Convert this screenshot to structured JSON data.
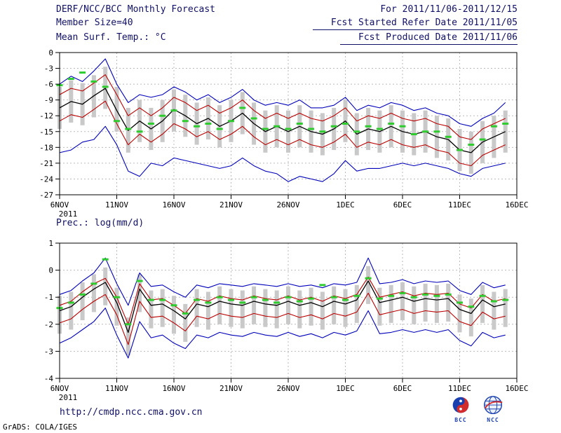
{
  "header": {
    "title": "DERF/NCC/BCC Monthly Forecast",
    "member_size": "Member Size=40",
    "temp_label": "Mean Surf. Temp.: °C",
    "for_range": "For 2011/11/06-2011/12/15",
    "fcst_started": "Fcst Started Refer Date 2011/11/05",
    "fcst_produced": "Fcst Produced Date 2011/11/06"
  },
  "footer": {
    "url": "http://cmdp.ncc.cma.gov.cn",
    "credit": "GrADS: COLA/IGES",
    "logos": [
      {
        "label": "BCC"
      },
      {
        "label": "NCC"
      }
    ]
  },
  "colors": {
    "text": "#101066",
    "axis": "#000000",
    "blue": "#0000bb",
    "red": "#bb0000",
    "black": "#000000",
    "green": "#2ecc2e",
    "bar": "#c9c9c9",
    "grid": "#bbbbbb"
  },
  "chart_data": [
    {
      "id": "temperature",
      "type": "line",
      "title": "Mean Surf. Temp.: °C",
      "ylim": [
        -27,
        0
      ],
      "yticks": [
        0,
        -3,
        -6,
        -9,
        -12,
        -15,
        -18,
        -21,
        -24,
        -27
      ],
      "x_range": [
        0,
        40
      ],
      "xtick_positions": [
        0,
        5,
        10,
        15,
        20,
        25,
        30,
        35,
        40
      ],
      "xtick_labels": [
        "6NOV",
        "11NOV",
        "16NOV",
        "21NOV",
        "26NOV",
        "1DEC",
        "6DEC",
        "11DEC",
        "16DEC"
      ],
      "x_sub_label": "2011",
      "grid": "dotted",
      "series": [
        {
          "name": "ensemble-max",
          "color": "#0000bb",
          "values": [
            -6.0,
            -4.5,
            -5.5,
            -3.5,
            -1.2,
            -6.0,
            -9.5,
            -8.0,
            -8.5,
            -8.0,
            -6.5,
            -7.5,
            -9.0,
            -8.0,
            -9.5,
            -8.5,
            -7.0,
            -9.0,
            -10.0,
            -9.5,
            -10.0,
            -9.0,
            -10.5,
            -10.5,
            -10.0,
            -8.5,
            -11.0,
            -10.0,
            -10.5,
            -9.5,
            -10.0,
            -11.0,
            -10.5,
            -11.5,
            -12.0,
            -13.5,
            -14.0,
            -12.5,
            -11.5,
            -9.5
          ]
        },
        {
          "name": "upper-spread",
          "color": "#bb0000",
          "values": [
            -8.0,
            -6.8,
            -7.3,
            -5.8,
            -4.2,
            -8.0,
            -12.0,
            -10.5,
            -12.0,
            -10.5,
            -8.5,
            -9.5,
            -11.0,
            -10.0,
            -11.5,
            -10.5,
            -9.0,
            -11.0,
            -12.5,
            -11.5,
            -12.5,
            -11.5,
            -12.5,
            -13.0,
            -12.0,
            -10.5,
            -13.0,
            -12.0,
            -12.5,
            -11.5,
            -12.5,
            -13.0,
            -12.5,
            -13.5,
            -14.0,
            -16.0,
            -16.5,
            -14.5,
            -13.5,
            -12.5
          ]
        },
        {
          "name": "ensemble-mean",
          "color": "#000000",
          "values": [
            -10.5,
            -9.3,
            -9.8,
            -8.2,
            -6.8,
            -11.0,
            -14.8,
            -13.0,
            -14.5,
            -13.0,
            -10.8,
            -12.0,
            -13.5,
            -12.5,
            -14.0,
            -13.0,
            -11.5,
            -13.5,
            -15.0,
            -14.0,
            -15.0,
            -14.0,
            -15.0,
            -15.5,
            -14.5,
            -13.0,
            -15.5,
            -14.5,
            -15.0,
            -14.0,
            -15.0,
            -15.5,
            -15.0,
            -16.0,
            -16.5,
            -18.5,
            -19.0,
            -17.0,
            -16.0,
            -15.0
          ]
        },
        {
          "name": "lower-spread",
          "color": "#bb0000",
          "values": [
            -13.0,
            -11.8,
            -12.3,
            -10.8,
            -9.2,
            -13.5,
            -17.5,
            -15.5,
            -17.0,
            -15.5,
            -13.5,
            -14.5,
            -16.0,
            -15.0,
            -16.5,
            -15.5,
            -14.0,
            -16.0,
            -17.5,
            -16.5,
            -17.5,
            -16.5,
            -17.5,
            -18.0,
            -17.0,
            -15.5,
            -18.0,
            -17.0,
            -17.5,
            -16.5,
            -17.5,
            -18.0,
            -17.5,
            -18.5,
            -19.0,
            -21.0,
            -21.5,
            -19.5,
            -18.5,
            -17.5
          ]
        },
        {
          "name": "ensemble-min",
          "color": "#0000bb",
          "values": [
            -19.0,
            -18.5,
            -17.0,
            -16.5,
            -14.0,
            -17.5,
            -22.5,
            -23.5,
            -21.0,
            -21.5,
            -20.0,
            -20.5,
            -21.0,
            -21.5,
            -22.0,
            -21.5,
            -20.0,
            -21.5,
            -22.5,
            -23.0,
            -24.5,
            -23.5,
            -24.0,
            -24.5,
            -23.0,
            -20.5,
            -22.5,
            -22.0,
            -22.0,
            -21.5,
            -21.0,
            -21.5,
            -21.0,
            -21.5,
            -22.0,
            -23.0,
            -23.5,
            -22.0,
            -21.5,
            -21.0
          ]
        }
      ],
      "bars": {
        "name": "member-spread",
        "color": "#c9c9c9",
        "hi": [
          -6.5,
          -5.3,
          -5.8,
          -4.3,
          -2.7,
          -6.5,
          -10.5,
          -9.0,
          -10.5,
          -9.0,
          -7.0,
          -8.0,
          -9.5,
          -8.5,
          -10.0,
          -9.0,
          -7.5,
          -9.5,
          -11.0,
          -10.0,
          -11.0,
          -10.0,
          -11.0,
          -11.5,
          -10.5,
          -9.0,
          -11.5,
          -10.5,
          -11.0,
          -10.0,
          -11.0,
          -11.5,
          -11.0,
          -12.0,
          -12.5,
          -14.5,
          -15.0,
          -13.0,
          -12.0,
          -11.0
        ],
        "lo": [
          -14.5,
          -13.3,
          -13.8,
          -12.3,
          -10.7,
          -15.0,
          -19.0,
          -17.0,
          -18.5,
          -17.0,
          -15.0,
          -16.0,
          -17.5,
          -16.5,
          -18.0,
          -17.0,
          -15.5,
          -17.5,
          -19.0,
          -18.0,
          -19.0,
          -18.0,
          -19.0,
          -19.5,
          -18.5,
          -17.0,
          -19.5,
          -18.5,
          -19.0,
          -18.0,
          -19.0,
          -19.5,
          -19.0,
          -20.0,
          -20.5,
          -22.5,
          -23.0,
          -21.0,
          -20.0,
          -19.0
        ]
      },
      "markers": {
        "name": "ensemble-median",
        "color": "#2ecc2e",
        "values": [
          -6.2,
          -5.0,
          -3.8,
          -5.5,
          -6.5,
          -13.0,
          -14.5,
          -15.0,
          -13.5,
          -12.0,
          -11.0,
          -13.0,
          -14.0,
          -13.5,
          -14.5,
          -13.0,
          -10.5,
          -12.5,
          -14.5,
          -14.0,
          -14.5,
          -13.5,
          -14.5,
          -15.0,
          -14.0,
          -13.5,
          -15.0,
          -14.0,
          -14.5,
          -13.5,
          -14.0,
          -15.5,
          -15.0,
          -15.0,
          -16.0,
          -18.5,
          -17.5,
          -16.5,
          -14.0,
          -13.5
        ]
      }
    },
    {
      "id": "precipitation",
      "type": "line",
      "title": "Prec.: log(mm/d)",
      "ylim": [
        -4,
        1
      ],
      "yticks": [
        1,
        0,
        -1,
        -2,
        -3,
        -4
      ],
      "x_range": [
        0,
        40
      ],
      "xtick_positions": [
        0,
        5,
        10,
        15,
        20,
        25,
        30,
        35,
        40
      ],
      "xtick_labels": [
        "6NOV",
        "11NOV",
        "16NOV",
        "21NOV",
        "26NOV",
        "1DEC",
        "6DEC",
        "11DEC",
        "16DEC"
      ],
      "x_sub_label": "2011",
      "grid": "dotted",
      "series": [
        {
          "name": "ensemble-max",
          "color": "#0000bb",
          "values": [
            -0.9,
            -0.75,
            -0.4,
            -0.1,
            0.45,
            -0.5,
            -1.3,
            -0.1,
            -0.6,
            -0.55,
            -0.8,
            -1.0,
            -0.55,
            -0.65,
            -0.5,
            -0.55,
            -0.6,
            -0.5,
            -0.55,
            -0.6,
            -0.5,
            -0.6,
            -0.55,
            -0.65,
            -0.5,
            -0.55,
            -0.45,
            0.45,
            -0.5,
            -0.45,
            -0.35,
            -0.5,
            -0.4,
            -0.45,
            -0.4,
            -0.75,
            -0.9,
            -0.45,
            -0.65,
            -0.55
          ]
        },
        {
          "name": "upper-spread",
          "color": "#bb0000",
          "values": [
            -1.3,
            -1.15,
            -0.8,
            -0.5,
            -0.3,
            -1.0,
            -2.0,
            -0.5,
            -1.1,
            -1.05,
            -1.3,
            -1.6,
            -1.05,
            -1.15,
            -0.95,
            -1.05,
            -1.1,
            -0.95,
            -1.05,
            -1.1,
            -0.95,
            -1.1,
            -1.0,
            -1.15,
            -0.95,
            -1.05,
            -0.9,
            -0.25,
            -1.0,
            -0.9,
            -0.8,
            -0.95,
            -0.85,
            -0.9,
            -0.85,
            -1.25,
            -1.4,
            -0.9,
            -1.15,
            -1.05
          ]
        },
        {
          "name": "ensemble-mean",
          "color": "#000000",
          "values": [
            -1.5,
            -1.35,
            -1.0,
            -0.7,
            -0.45,
            -1.2,
            -2.3,
            -0.7,
            -1.3,
            -1.25,
            -1.5,
            -1.8,
            -1.25,
            -1.35,
            -1.15,
            -1.25,
            -1.3,
            -1.15,
            -1.25,
            -1.3,
            -1.15,
            -1.3,
            -1.2,
            -1.35,
            -1.15,
            -1.25,
            -1.1,
            -0.4,
            -1.2,
            -1.1,
            -1.0,
            -1.15,
            -1.05,
            -1.1,
            -1.05,
            -1.45,
            -1.6,
            -1.1,
            -1.35,
            -1.25
          ]
        },
        {
          "name": "lower-spread",
          "color": "#bb0000",
          "values": [
            -1.95,
            -1.8,
            -1.45,
            -1.15,
            -0.9,
            -1.65,
            -2.75,
            -1.15,
            -1.75,
            -1.7,
            -1.95,
            -2.25,
            -1.7,
            -1.8,
            -1.6,
            -1.7,
            -1.75,
            -1.6,
            -1.7,
            -1.75,
            -1.6,
            -1.75,
            -1.65,
            -1.8,
            -1.6,
            -1.7,
            -1.55,
            -0.85,
            -1.65,
            -1.55,
            -1.45,
            -1.6,
            -1.5,
            -1.55,
            -1.5,
            -1.9,
            -2.05,
            -1.55,
            -1.8,
            -1.7
          ]
        },
        {
          "name": "ensemble-min",
          "color": "#0000bb",
          "values": [
            -2.7,
            -2.5,
            -2.2,
            -1.9,
            -1.4,
            -2.4,
            -3.25,
            -1.9,
            -2.5,
            -2.4,
            -2.7,
            -2.9,
            -2.4,
            -2.5,
            -2.3,
            -2.4,
            -2.45,
            -2.3,
            -2.4,
            -2.45,
            -2.3,
            -2.45,
            -2.35,
            -2.5,
            -2.3,
            -2.4,
            -2.25,
            -1.5,
            -2.35,
            -2.3,
            -2.2,
            -2.3,
            -2.2,
            -2.3,
            -2.2,
            -2.6,
            -2.8,
            -2.3,
            -2.5,
            -2.4
          ]
        }
      ],
      "bars": {
        "name": "member-spread",
        "color": "#c9c9c9",
        "hi": [
          -0.95,
          -0.8,
          -0.45,
          -0.15,
          0.1,
          -0.65,
          -1.75,
          -0.15,
          -0.75,
          -0.7,
          -0.95,
          -1.25,
          -0.7,
          -0.8,
          -0.6,
          -0.7,
          -0.75,
          -0.6,
          -0.7,
          -0.75,
          -0.6,
          -0.75,
          -0.65,
          -0.8,
          -0.6,
          -0.7,
          -0.55,
          0.15,
          -0.65,
          -0.55,
          -0.45,
          -0.6,
          -0.5,
          -0.55,
          -0.5,
          -0.9,
          -1.05,
          -0.55,
          -0.8,
          -0.7
        ],
        "lo": [
          -2.35,
          -2.2,
          -1.85,
          -1.55,
          -1.3,
          -2.05,
          -3.15,
          -1.55,
          -2.15,
          -2.1,
          -2.35,
          -2.65,
          -2.1,
          -2.2,
          -2.0,
          -2.1,
          -2.15,
          -2.0,
          -2.1,
          -2.15,
          -2.0,
          -2.15,
          -2.05,
          -2.2,
          -2.0,
          -2.1,
          -1.95,
          -1.25,
          -2.05,
          -1.95,
          -1.85,
          -2.0,
          -1.9,
          -1.95,
          -1.9,
          -2.3,
          -2.45,
          -1.95,
          -2.2,
          -2.1
        ]
      },
      "markers": {
        "name": "ensemble-median",
        "color": "#2ecc2e",
        "values": [
          -1.4,
          -1.2,
          -0.9,
          -0.5,
          0.4,
          -1.0,
          -2.0,
          -0.4,
          -1.1,
          -1.1,
          -1.3,
          -1.6,
          -1.1,
          -1.2,
          -1.0,
          -1.1,
          -1.2,
          -1.0,
          -1.1,
          -1.2,
          -1.0,
          -1.15,
          -1.05,
          -0.55,
          -1.0,
          -1.1,
          -0.95,
          -0.3,
          -1.05,
          -0.95,
          -0.85,
          -1.0,
          -0.9,
          -0.95,
          -0.9,
          -1.2,
          -1.35,
          -0.95,
          -1.15,
          -1.1
        ]
      }
    }
  ]
}
